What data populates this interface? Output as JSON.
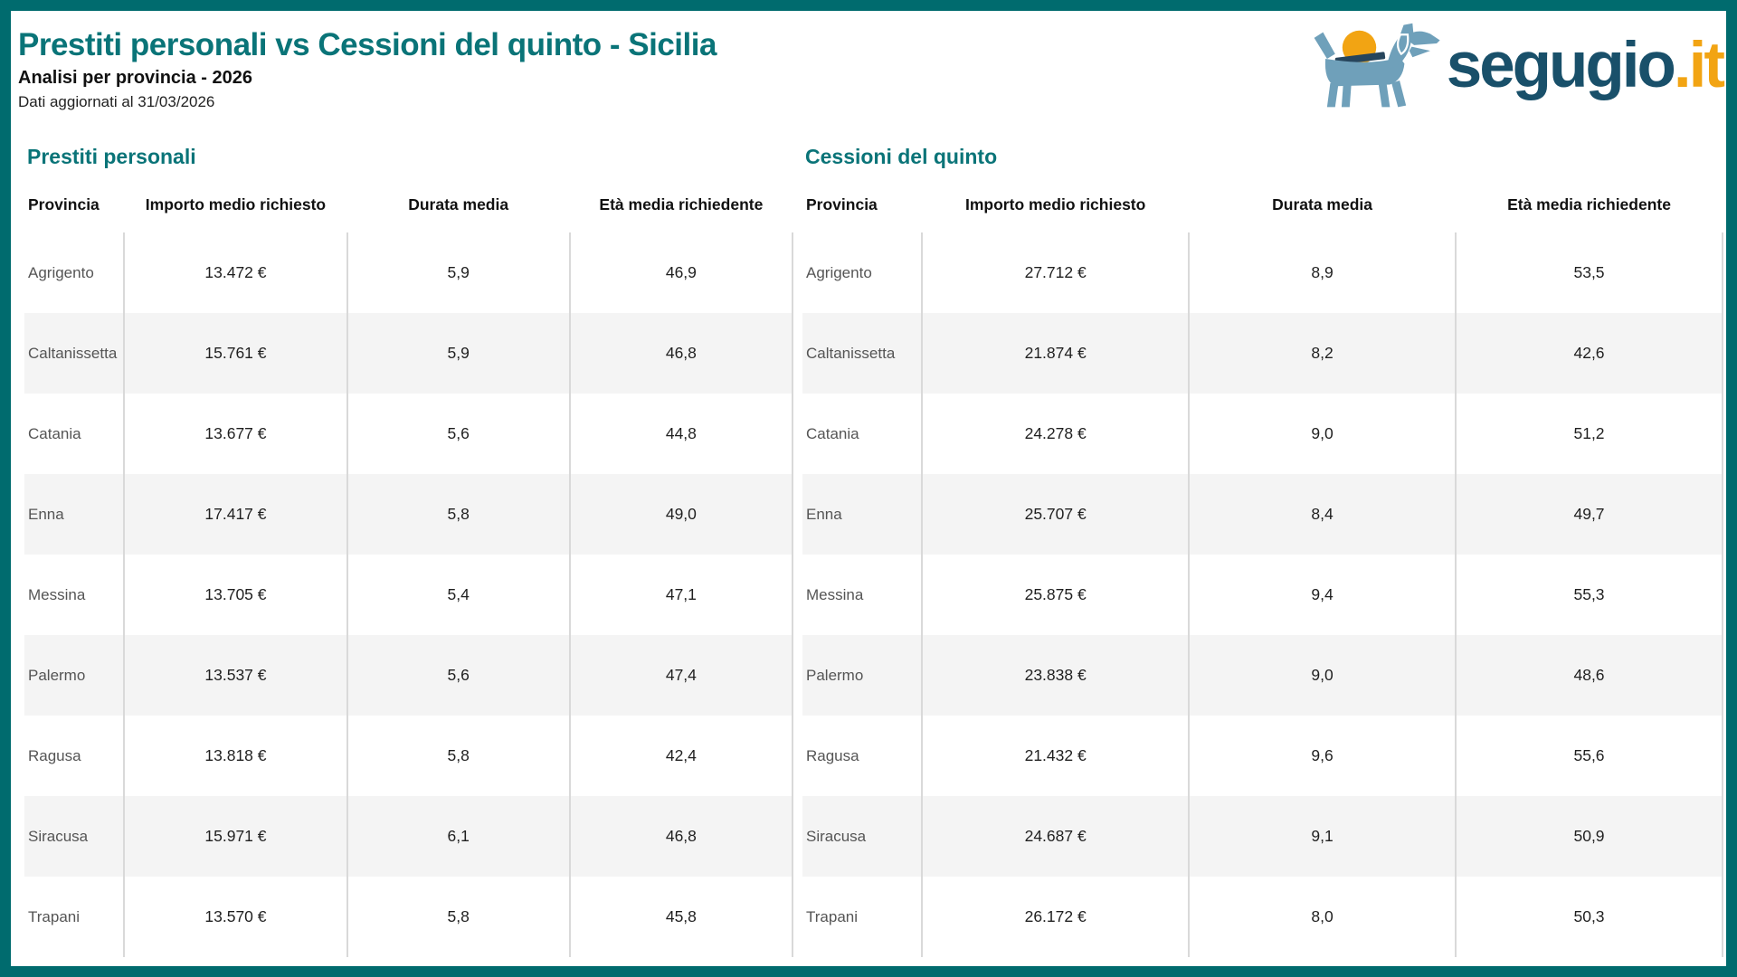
{
  "header": {
    "title": "Prestiti personali vs Cessioni del quinto - Sicilia",
    "subtitle": "Analisi per provincia - 2026",
    "updated": "Dati aggiornati al 31/03/2026"
  },
  "logo": {
    "name": "segugio",
    "tld": ".it"
  },
  "colors": {
    "frame": "#006b6e",
    "teal": "#0a7478",
    "logoNavy": "#19506a",
    "orange": "#f2a413",
    "dogBlue": "#6fa0ba",
    "slotNavy": "#27455c",
    "stripe": "#f4f4f4",
    "line": "#d9d9d9"
  },
  "chart_data": [
    {
      "type": "table",
      "title": "Prestiti personali",
      "columns": [
        "Provincia",
        "Importo medio richiesto",
        "Durata media",
        "Età media richiedente"
      ],
      "rows": [
        [
          "Agrigento",
          "13.472 €",
          "5,9",
          "46,9"
        ],
        [
          "Caltanissetta",
          "15.761 €",
          "5,9",
          "46,8"
        ],
        [
          "Catania",
          "13.677 €",
          "5,6",
          "44,8"
        ],
        [
          "Enna",
          "17.417 €",
          "5,8",
          "49,0"
        ],
        [
          "Messina",
          "13.705 €",
          "5,4",
          "47,1"
        ],
        [
          "Palermo",
          "13.537 €",
          "5,6",
          "47,4"
        ],
        [
          "Ragusa",
          "13.818 €",
          "5,8",
          "42,4"
        ],
        [
          "Siracusa",
          "15.971 €",
          "6,1",
          "46,8"
        ],
        [
          "Trapani",
          "13.570 €",
          "5,8",
          "45,8"
        ]
      ]
    },
    {
      "type": "table",
      "title": "Cessioni del quinto",
      "columns": [
        "Provincia",
        "Importo medio richiesto",
        "Durata media",
        "Età media richiedente"
      ],
      "rows": [
        [
          "Agrigento",
          "27.712 €",
          "8,9",
          "53,5"
        ],
        [
          "Caltanissetta",
          "21.874 €",
          "8,2",
          "42,6"
        ],
        [
          "Catania",
          "24.278 €",
          "9,0",
          "51,2"
        ],
        [
          "Enna",
          "25.707 €",
          "8,4",
          "49,7"
        ],
        [
          "Messina",
          "25.875 €",
          "9,4",
          "55,3"
        ],
        [
          "Palermo",
          "23.838 €",
          "9,0",
          "48,6"
        ],
        [
          "Ragusa",
          "21.432 €",
          "9,6",
          "55,6"
        ],
        [
          "Siracusa",
          "24.687 €",
          "9,1",
          "50,9"
        ],
        [
          "Trapani",
          "26.172 €",
          "8,0",
          "50,3"
        ]
      ]
    }
  ]
}
